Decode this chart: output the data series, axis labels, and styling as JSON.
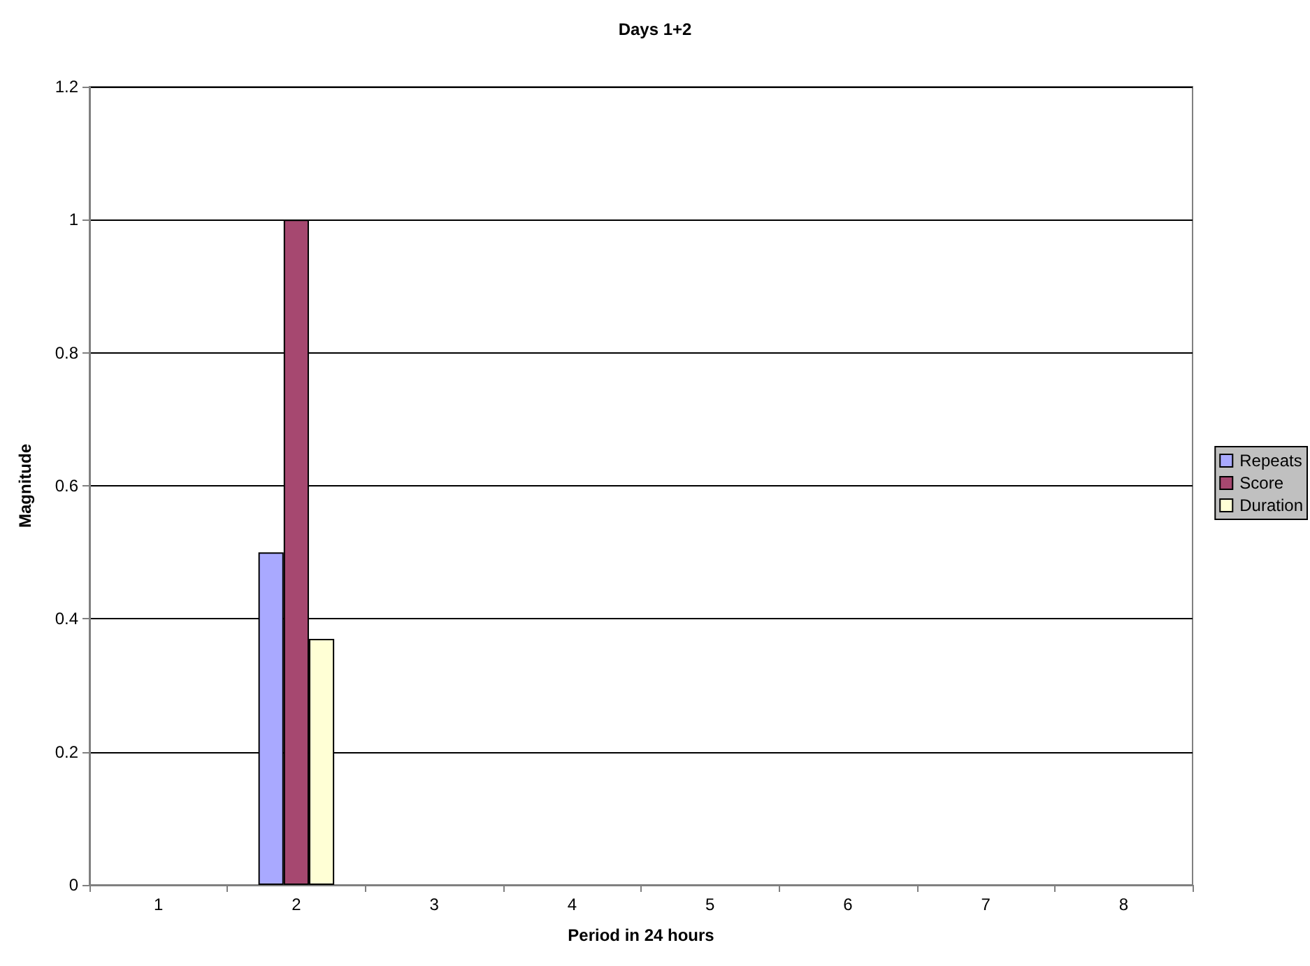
{
  "chart_data": {
    "type": "bar",
    "title": "Days 1+2",
    "xlabel": "Period in 24 hours",
    "ylabel": "Magnitude",
    "categories": [
      "1",
      "2",
      "3",
      "4",
      "5",
      "6",
      "7",
      "8"
    ],
    "series": [
      {
        "name": "Repeats",
        "color": "#a9a9ff",
        "values": [
          0,
          0.5,
          0,
          0,
          0,
          0,
          0,
          0
        ]
      },
      {
        "name": "Score",
        "color": "#a64870",
        "values": [
          0,
          1,
          0,
          0,
          0,
          0,
          0,
          0
        ]
      },
      {
        "name": "Duration",
        "color": "#ffffd5",
        "values": [
          0,
          0.37,
          0,
          0,
          0,
          0,
          0,
          0
        ]
      }
    ],
    "ylim": [
      0,
      1.2
    ],
    "yticks": [
      0,
      0.2,
      0.4,
      0.6,
      0.8,
      1,
      1.2
    ],
    "grid": "y",
    "legend": "right"
  }
}
